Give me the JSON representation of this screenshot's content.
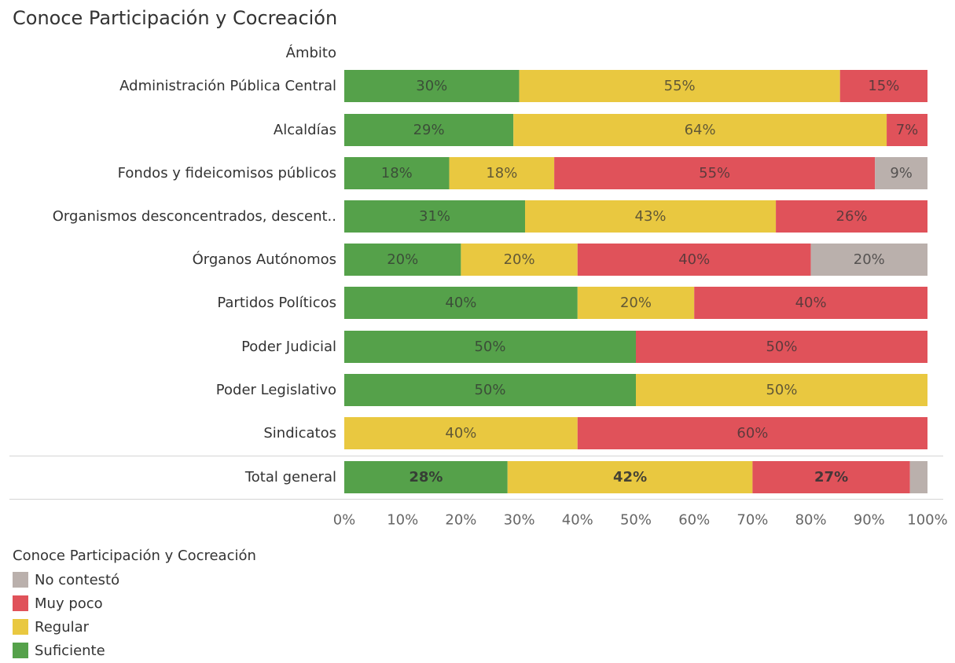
{
  "title": "Conoce Participación y Cocreación",
  "row_header": "Ámbito",
  "colors": {
    "Suficiente": "#55a14a",
    "Regular": "#e9c840",
    "Muy poco": "#e0525a",
    "No contestó": "#bab0ac"
  },
  "chart_data": {
    "type": "bar",
    "orientation": "horizontal",
    "stacked": true,
    "title": "Conoce Participación y Cocreación",
    "ylabel": "Ámbito",
    "categories": [
      "Administración Pública Central",
      "Alcaldías",
      "Fondos y fideicomisos públicos",
      "Organismos desconcentrados, descent..",
      "Órganos Autónomos",
      "Partidos Políticos",
      "Poder Judicial",
      "Poder Legislativo",
      "Sindicatos",
      "Total general"
    ],
    "series": [
      {
        "name": "Suficiente",
        "values": [
          30,
          29,
          18,
          31,
          20,
          40,
          50,
          50,
          0,
          28
        ],
        "labels": [
          "30%",
          "29%",
          "18%",
          "31%",
          "20%",
          "40%",
          "50%",
          "50%",
          "",
          "28%"
        ]
      },
      {
        "name": "Regular",
        "values": [
          55,
          64,
          18,
          43,
          20,
          20,
          0,
          50,
          40,
          42
        ],
        "labels": [
          "55%",
          "64%",
          "18%",
          "43%",
          "20%",
          "20%",
          "",
          "50%",
          "40%",
          "42%"
        ]
      },
      {
        "name": "Muy poco",
        "values": [
          15,
          7,
          55,
          26,
          40,
          40,
          50,
          0,
          60,
          27
        ],
        "labels": [
          "15%",
          "7%",
          "55%",
          "26%",
          "40%",
          "40%",
          "50%",
          "",
          "60%",
          "27%"
        ]
      },
      {
        "name": "No contestó",
        "values": [
          0,
          0,
          9,
          0,
          20,
          0,
          0,
          0,
          0,
          3
        ],
        "labels": [
          "",
          "",
          "9%",
          "",
          "20%",
          "",
          "",
          "",
          "",
          ""
        ]
      }
    ],
    "xlim": [
      0,
      100
    ],
    "x_ticks": [
      "0%",
      "10%",
      "20%",
      "30%",
      "40%",
      "50%",
      "60%",
      "70%",
      "80%",
      "90%",
      "100%"
    ],
    "grid": false,
    "legend": {
      "title": "Conoce Participación y Cocreación",
      "placement": "bottom-left",
      "items": [
        "No contestó",
        "Muy poco",
        "Regular",
        "Suficiente"
      ]
    }
  }
}
